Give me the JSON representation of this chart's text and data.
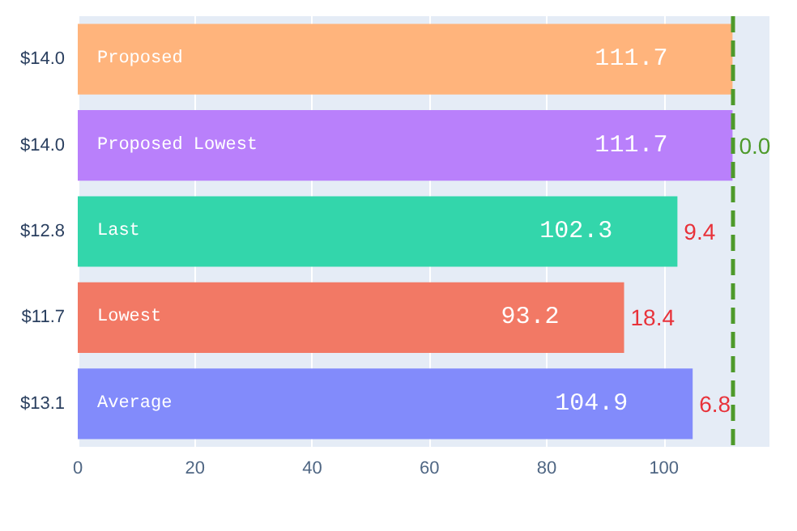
{
  "chart_data": {
    "type": "bar",
    "orientation": "horizontal",
    "categories": [
      "$14.0",
      "$14.0",
      "$12.8",
      "$11.7",
      "$13.1"
    ],
    "values": [
      111.7,
      111.7,
      102.3,
      93.2,
      104.9
    ],
    "colors": [
      "#ffb47c",
      "#b980fb",
      "#33d6ab",
      "#f27965",
      "#828bfb"
    ],
    "data_labels": true,
    "xlim": [
      0,
      118
    ],
    "xticks": [
      0,
      20,
      40,
      60,
      80,
      100
    ],
    "grid": "x",
    "ref_lines": [
      {
        "axis": "x",
        "value": 111.7,
        "color": "#4e9a2b",
        "line_style": "dashed"
      }
    ],
    "annotations": [
      "Proposed",
      "Proposed Lowest",
      "Last",
      "Lowest",
      "Average",
      {
        "text": "0.0",
        "x": 111.7,
        "y": "$14.0"
      },
      {
        "text": "9.4",
        "x": 102.3,
        "y": "$12.8"
      },
      {
        "text": "18.4",
        "x": 93.2,
        "y": "$11.7"
      },
      {
        "text": "6.8",
        "x": 104.9,
        "y": "$13.1"
      }
    ]
  }
}
